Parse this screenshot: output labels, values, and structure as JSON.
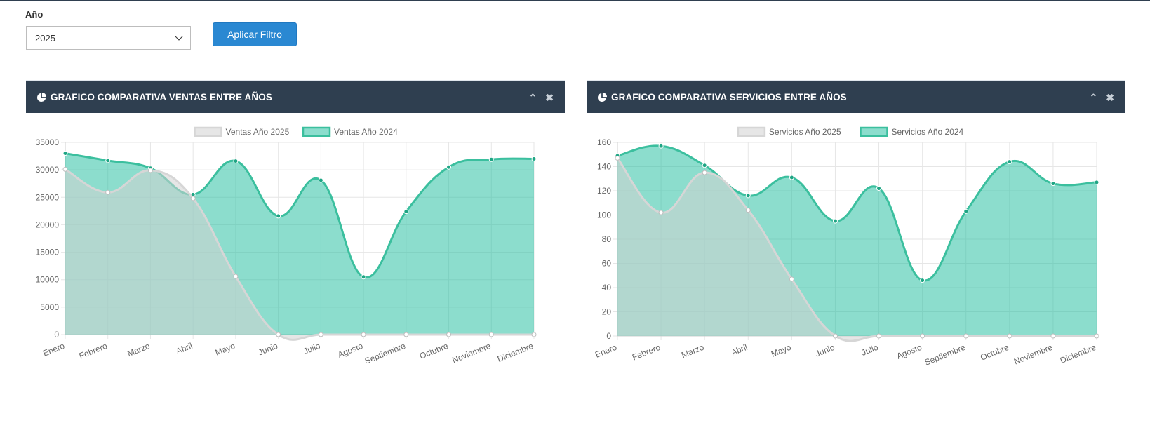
{
  "filter": {
    "year_label": "Año",
    "year_value": "2025",
    "apply_label": "Aplicar Filtro"
  },
  "panels": [
    {
      "title": "GRAFICO COMPARATIVA VENTAS ENTRE AÑOS",
      "collapse_icon": "chevron-up-icon",
      "close_icon": "close-icon"
    },
    {
      "title": "GRAFICO COMPARATIVA SERVICIOS ENTRE AÑOS",
      "collapse_icon": "chevron-up-icon",
      "close_icon": "close-icon"
    }
  ],
  "colors": {
    "header_bg": "#2f3f50",
    "button_bg": "#2a88d2",
    "series_2025_fill": "rgba(210,210,210,0.55)",
    "series_2025_line": "#d6d6d6",
    "series_2024_fill": "rgba(26,188,156,0.5)",
    "series_2024_line": "#3bbf9e"
  },
  "chart_data": [
    {
      "type": "area",
      "categories": [
        "Enero",
        "Febrero",
        "Marzo",
        "Abril",
        "Mayo",
        "Junio",
        "Julio",
        "Agosto",
        "Septiembre",
        "Octubre",
        "Noviembre",
        "Diciembre"
      ],
      "series": [
        {
          "name": "Ventas Año 2025",
          "values": [
            30100,
            25900,
            29900,
            24800,
            10600,
            0,
            0,
            0,
            0,
            0,
            0,
            0
          ]
        },
        {
          "name": "Ventas Año 2024",
          "values": [
            33000,
            31700,
            30300,
            25500,
            31600,
            21600,
            28100,
            10500,
            22400,
            30500,
            31900,
            32000
          ]
        }
      ],
      "yticks": [
        0,
        5000,
        10000,
        15000,
        20000,
        25000,
        30000,
        35000
      ],
      "ylim": [
        0,
        35000
      ],
      "grid": true,
      "legend": "top-center"
    },
    {
      "type": "area",
      "categories": [
        "Enero",
        "Febrero",
        "Marzo",
        "Abril",
        "Mayo",
        "Junio",
        "Julio",
        "Agosto",
        "Septiembre",
        "Octubre",
        "Noviembre",
        "Diciembre"
      ],
      "series": [
        {
          "name": "Servicios Año 2025",
          "values": [
            147,
            102,
            135,
            104,
            47,
            0,
            0,
            0,
            0,
            0,
            0,
            0
          ]
        },
        {
          "name": "Servicios Año 2024",
          "values": [
            149,
            157,
            141,
            116,
            131,
            95,
            122,
            46,
            103,
            144,
            126,
            127
          ]
        }
      ],
      "yticks": [
        0,
        20,
        40,
        60,
        80,
        100,
        120,
        140,
        160
      ],
      "ylim": [
        0,
        160
      ],
      "grid": true,
      "legend": "top-center"
    }
  ]
}
